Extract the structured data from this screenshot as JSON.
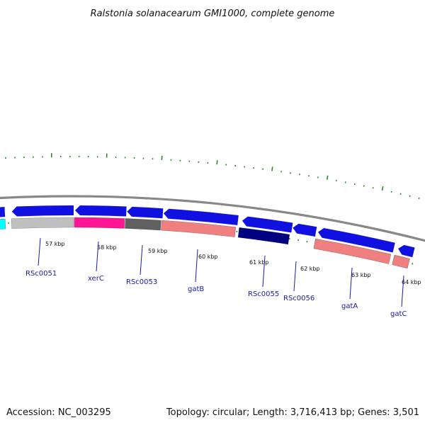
{
  "title": "Ralstonia solanacearum GMI1000, complete genome",
  "footer": {
    "accession": "Accession: NC_003295",
    "summary": "Topology: circular; Length: 3,716,413 bp; Genes: 3,501"
  },
  "colors": {
    "forward_gene": "#1010e0",
    "backbone": "#888888",
    "tick": "#2a8a2a",
    "label": "#1a1aa8"
  },
  "kbp_labels": [
    "57 kbp",
    "58 kbp",
    "59 kbp",
    "60 kbp",
    "61 kbp",
    "62 kbp",
    "63 kbp",
    "64 kbp"
  ],
  "gene_labels": [
    "RSc0051",
    "xerC",
    "RSc0053",
    "gatB",
    "RSc0055",
    "RSc0056",
    "gatA",
    "gatC"
  ],
  "gene_colors": {
    "RSc0051": "#c0c0c0",
    "xerC": "#ff1493",
    "RSc0053": "#606060",
    "gatB": "#f08080",
    "RSc0055": "#000080",
    "RSc0056": "#ffffff",
    "gatA": "#f08080",
    "gatC": "#f08080"
  }
}
